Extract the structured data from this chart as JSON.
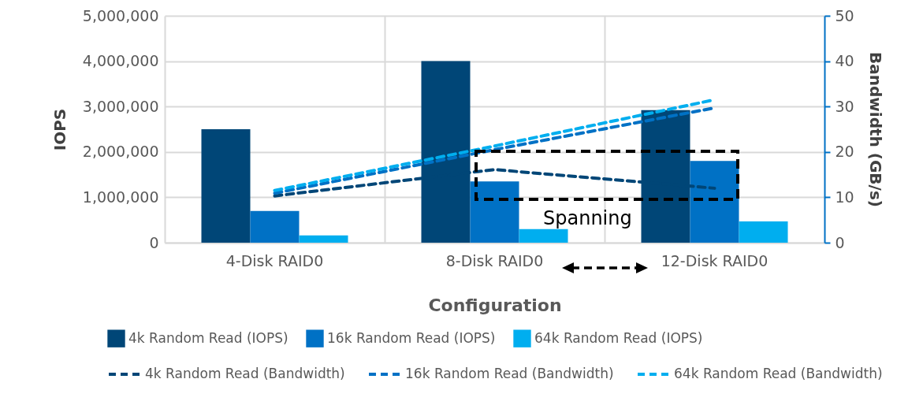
{
  "chart_data": {
    "type": "bar",
    "xlabel": "Configuration",
    "ylabel": "IOPS",
    "y2label": "Bandwidth (GB/s)",
    "categories": [
      "4-Disk RAID0",
      "8-Disk RAID0",
      "12-Disk RAID0"
    ],
    "series": [
      {
        "name": "4k Random Read (IOPS)",
        "color": "#004677",
        "values": [
          2500000,
          4000000,
          2920000
        ]
      },
      {
        "name": "16k Random Read (IOPS)",
        "color": "#0071c5",
        "values": [
          700000,
          1350000,
          1800000
        ]
      },
      {
        "name": "64k Random Read (IOPS)",
        "color": "#00aeef",
        "values": [
          160000,
          300000,
          470000
        ]
      },
      {
        "name": "4k Random Read (Bandwidth)",
        "type": "line",
        "axis": "y2",
        "line_style": "dashed",
        "color": "#004677",
        "values": [
          10.3,
          16.1,
          12
        ]
      },
      {
        "name": "16k Random Read (Bandwidth)",
        "type": "line",
        "axis": "y2",
        "line_style": "dashed",
        "color": "#0071c5",
        "values": [
          10.9,
          20.5,
          29.7
        ]
      },
      {
        "name": "64k Random Read (Bandwidth)",
        "type": "line",
        "axis": "y2",
        "line_style": "dashed",
        "color": "#00aeef",
        "values": [
          11.5,
          21.3,
          31.5
        ]
      }
    ],
    "ylim": [
      0,
      5000000
    ],
    "yticks": [
      0,
      {
        "value": 1000000,
        "label": "1,000,000"
      },
      {
        "value": 2000000,
        "label": "2,000,000"
      },
      {
        "value": 3000000,
        "label": "3,000,000"
      },
      {
        "value": 4000000,
        "label": "4,000,000"
      },
      {
        "value": 5000000,
        "label": "5,000,000"
      }
    ],
    "y2lim": [
      0,
      50
    ],
    "y2ticks": [
      0,
      10,
      20,
      30,
      40,
      50
    ],
    "annotations": [
      "Spanning"
    ],
    "grid": true,
    "legend": "bottom"
  }
}
